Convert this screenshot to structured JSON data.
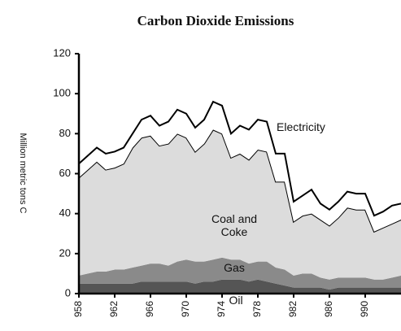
{
  "chart_data": {
    "type": "stacked_area",
    "title": "Carbon Dioxide Emissions",
    "y_label": "Million metric tons C",
    "x": [
      1958,
      1959,
      1960,
      1961,
      1962,
      1963,
      1964,
      1965,
      1966,
      1967,
      1968,
      1969,
      1970,
      1971,
      1972,
      1973,
      1974,
      1975,
      1976,
      1977,
      1978,
      1979,
      1980,
      1981,
      1982,
      1983,
      1984,
      1985,
      1986,
      1987,
      1988,
      1989,
      1990,
      1991,
      1992,
      1993,
      1994
    ],
    "series": [
      {
        "name": "Oil",
        "color": "#555555",
        "values": [
          5,
          5,
          5,
          5,
          5,
          5,
          5,
          6,
          6,
          6,
          6,
          6,
          6,
          5,
          6,
          6,
          7,
          7,
          7,
          6,
          7,
          6,
          5,
          4,
          3,
          3,
          3,
          3,
          2,
          3,
          3,
          3,
          3,
          3,
          3,
          3,
          3
        ]
      },
      {
        "name": "Gas",
        "color": "#8a8a8a",
        "values": [
          4,
          5,
          6,
          6,
          7,
          7,
          8,
          8,
          9,
          9,
          8,
          10,
          11,
          11,
          10,
          11,
          11,
          10,
          10,
          9,
          9,
          10,
          8,
          8,
          6,
          7,
          7,
          5,
          5,
          5,
          5,
          5,
          5,
          4,
          4,
          5,
          6
        ]
      },
      {
        "name": "Coal and Coke",
        "color": "#dcdcdc",
        "values": [
          49,
          52,
          55,
          51,
          51,
          53,
          60,
          64,
          64,
          59,
          61,
          64,
          61,
          55,
          59,
          65,
          62,
          51,
          53,
          52,
          56,
          55,
          43,
          44,
          27,
          29,
          30,
          29,
          27,
          30,
          35,
          34,
          34,
          24,
          26,
          27,
          28
        ]
      },
      {
        "name": "Electricity",
        "color": "#ffffff",
        "values": [
          7,
          7,
          7,
          8,
          8,
          8,
          7,
          9,
          10,
          10,
          11,
          12,
          12,
          12,
          12,
          14,
          14,
          12,
          14,
          15,
          15,
          15,
          14,
          14,
          10,
          10,
          12,
          8,
          8,
          8,
          8,
          8,
          8,
          8,
          8,
          9,
          8
        ]
      }
    ],
    "xlim": [
      1958,
      1994
    ],
    "xticks": [
      {
        "value": 1958,
        "label": "958"
      },
      {
        "value": 1962,
        "label": "962"
      },
      {
        "value": 1966,
        "label": "966"
      },
      {
        "value": 1970,
        "label": "970"
      },
      {
        "value": 1974,
        "label": "974"
      },
      {
        "value": 1978,
        "label": "978"
      },
      {
        "value": 1982,
        "label": "982"
      },
      {
        "value": 1986,
        "label": "986"
      },
      {
        "value": 1990,
        "label": "990"
      }
    ],
    "ylim": [
      0,
      120
    ],
    "yticks": [
      0,
      20,
      40,
      60,
      80,
      100,
      120
    ],
    "grid": false
  }
}
